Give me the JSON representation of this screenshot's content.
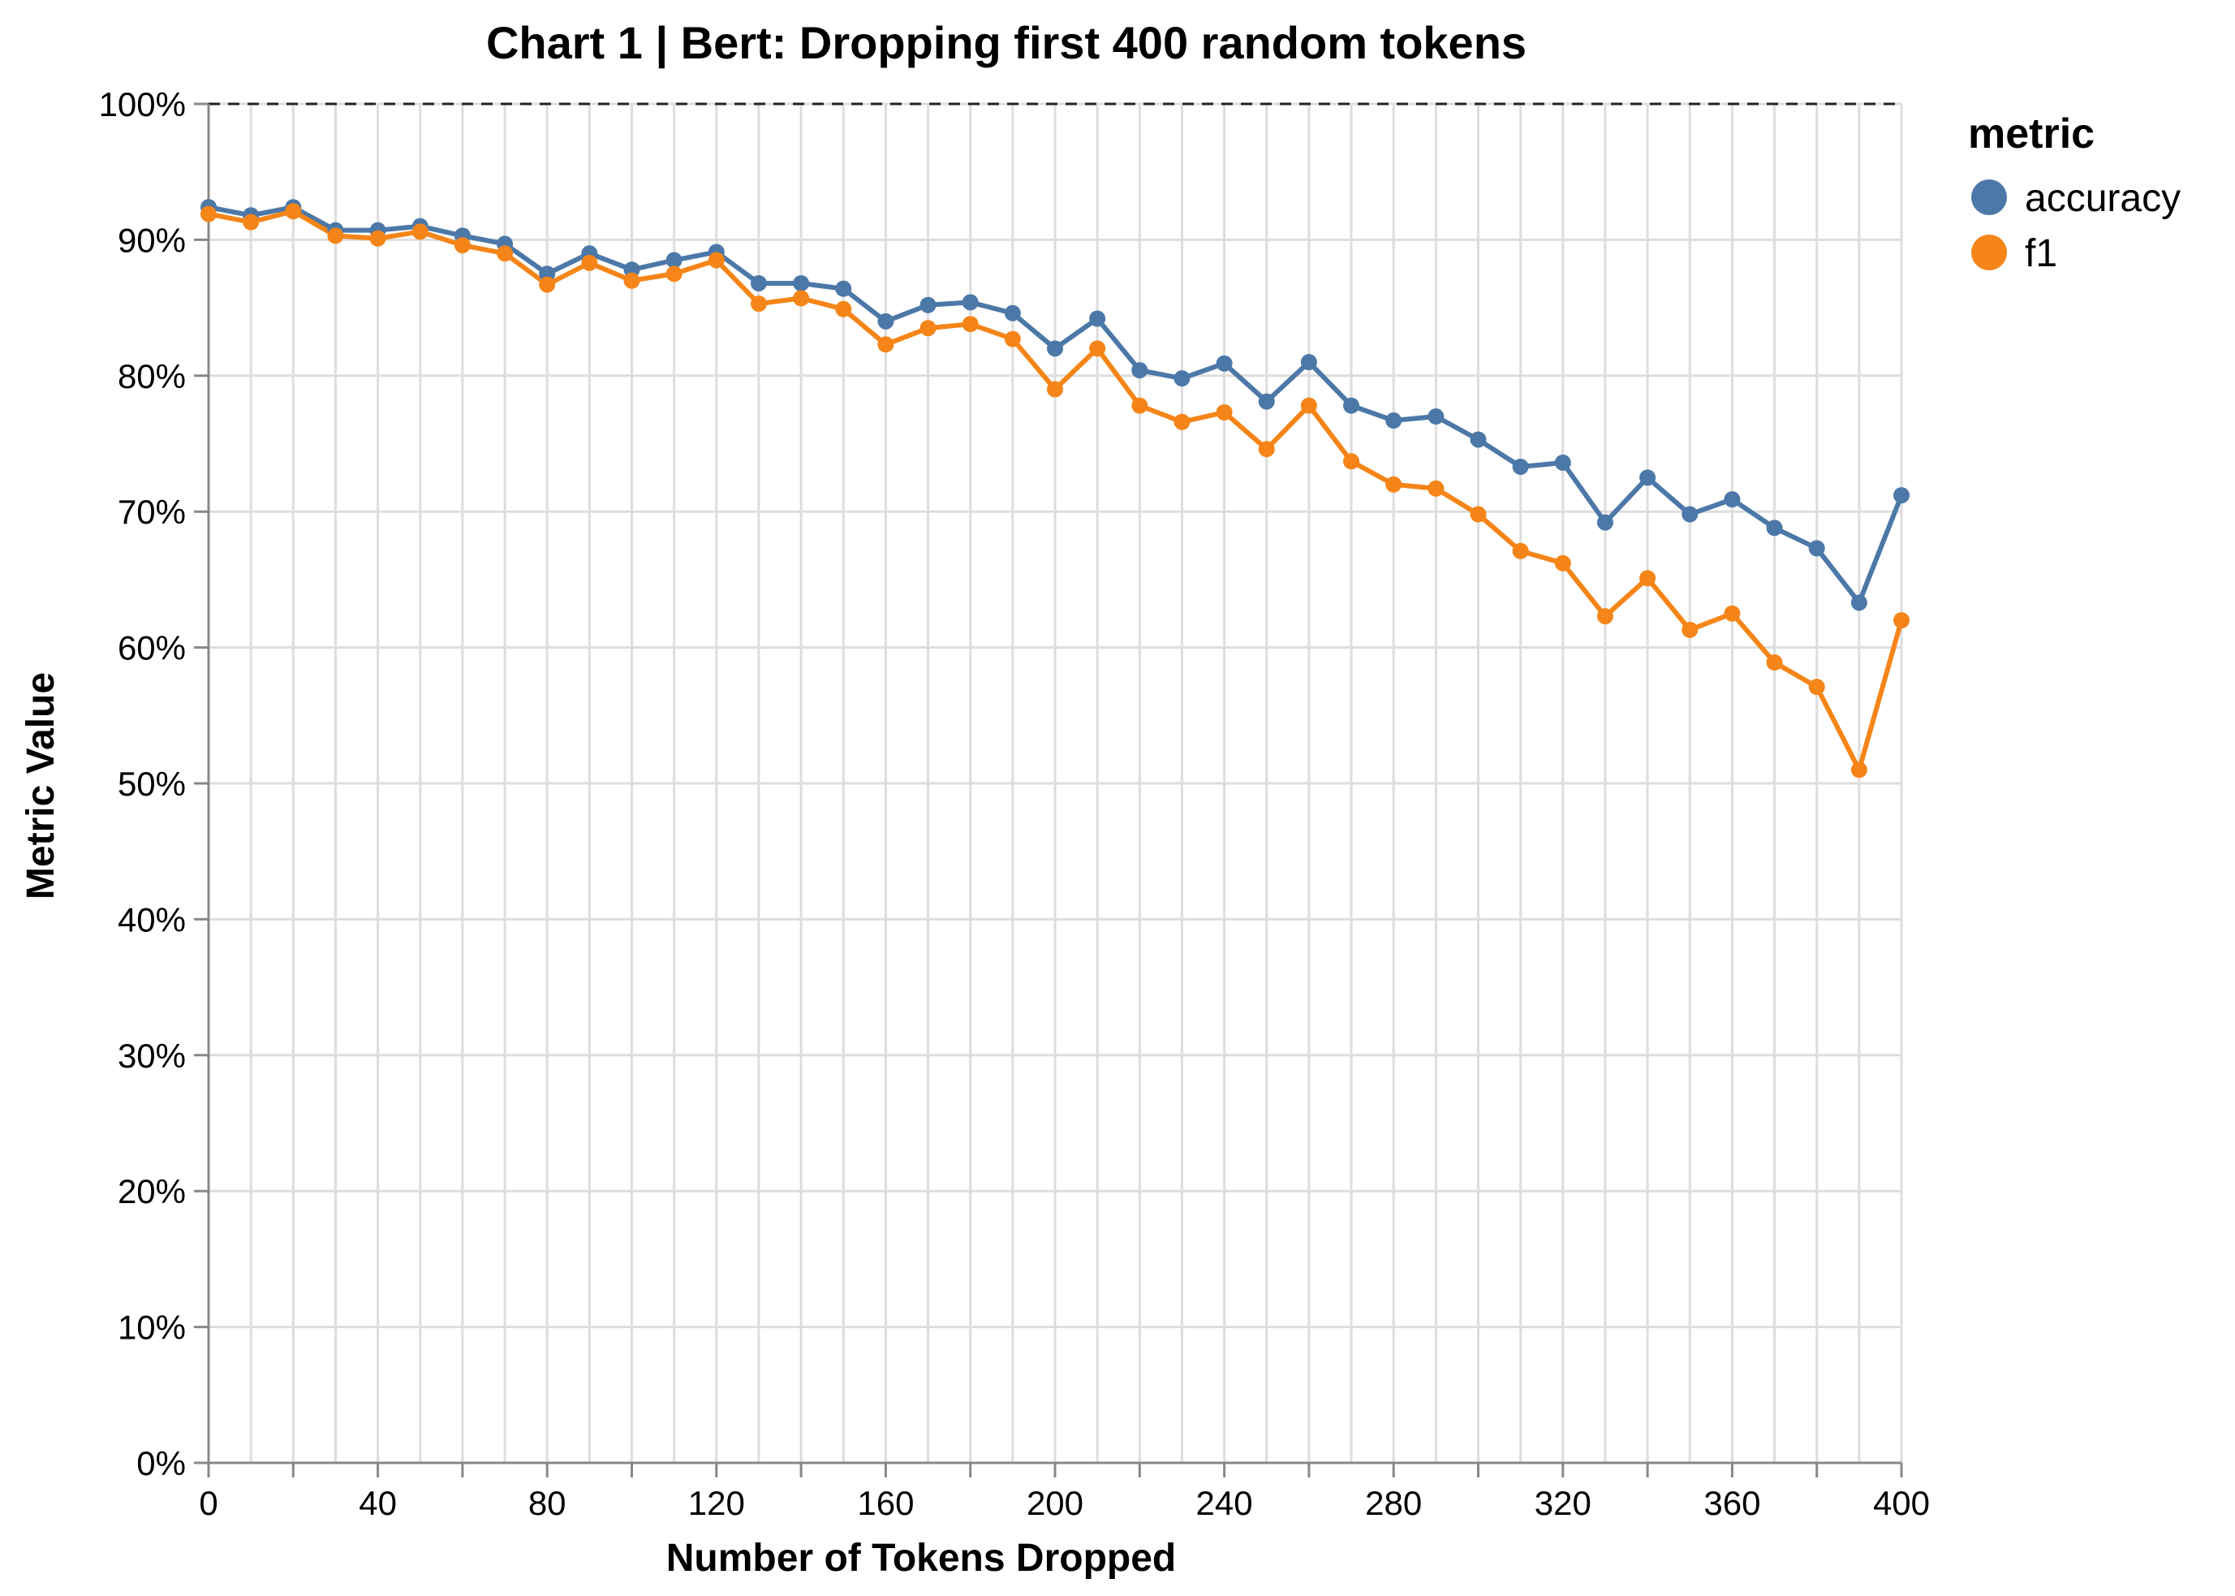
{
  "chart_data": {
    "type": "line",
    "title": "Chart 1 | Bert: Dropping first 400 random tokens",
    "xlabel": "Number of Tokens Dropped",
    "ylabel": "Metric Value",
    "xlim": [
      0,
      400
    ],
    "ylim": [
      0,
      1
    ],
    "x_ticks": [
      0,
      40,
      80,
      120,
      160,
      200,
      240,
      280,
      320,
      360,
      400
    ],
    "x_tick_labels": [
      "0",
      "40",
      "80",
      "120",
      "160",
      "200",
      "240",
      "280",
      "320",
      "360",
      "400"
    ],
    "y_ticks": [
      0,
      0.1,
      0.2,
      0.3,
      0.4,
      0.5,
      0.6,
      0.7,
      0.8,
      0.9,
      1.0
    ],
    "y_tick_labels": [
      "0%",
      "10%",
      "20%",
      "30%",
      "40%",
      "50%",
      "60%",
      "70%",
      "80%",
      "90%",
      "100%"
    ],
    "grid": true,
    "reference_line": {
      "y": 1.0,
      "style": "dashed"
    },
    "legend": {
      "title": "metric",
      "position": "top-right"
    },
    "x": [
      0,
      10,
      20,
      30,
      40,
      50,
      60,
      70,
      80,
      90,
      100,
      110,
      120,
      130,
      140,
      150,
      160,
      170,
      180,
      190,
      200,
      210,
      220,
      230,
      240,
      250,
      260,
      270,
      280,
      290,
      300,
      310,
      320,
      330,
      340,
      350,
      360,
      370,
      380,
      390,
      400
    ],
    "series": [
      {
        "name": "accuracy",
        "color": "#4c78a8",
        "values": [
          0.924,
          0.918,
          0.924,
          0.907,
          0.907,
          0.91,
          0.903,
          0.897,
          0.875,
          0.89,
          0.878,
          0.885,
          0.891,
          0.868,
          0.868,
          0.864,
          0.84,
          0.852,
          0.854,
          0.846,
          0.82,
          0.842,
          0.804,
          0.798,
          0.809,
          0.781,
          0.81,
          0.778,
          0.767,
          0.77,
          0.753,
          0.733,
          0.736,
          0.692,
          0.725,
          0.698,
          0.709,
          0.688,
          0.673,
          0.633,
          0.712
        ]
      },
      {
        "name": "f1",
        "color": "#f58518",
        "values": [
          0.919,
          0.913,
          0.921,
          0.903,
          0.901,
          0.906,
          0.896,
          0.89,
          0.867,
          0.883,
          0.87,
          0.875,
          0.885,
          0.853,
          0.857,
          0.849,
          0.823,
          0.835,
          0.838,
          0.827,
          0.79,
          0.82,
          0.778,
          0.766,
          0.773,
          0.746,
          0.778,
          0.737,
          0.72,
          0.717,
          0.698,
          0.671,
          0.662,
          0.623,
          0.651,
          0.613,
          0.625,
          0.589,
          0.571,
          0.51,
          0.62
        ]
      }
    ]
  }
}
